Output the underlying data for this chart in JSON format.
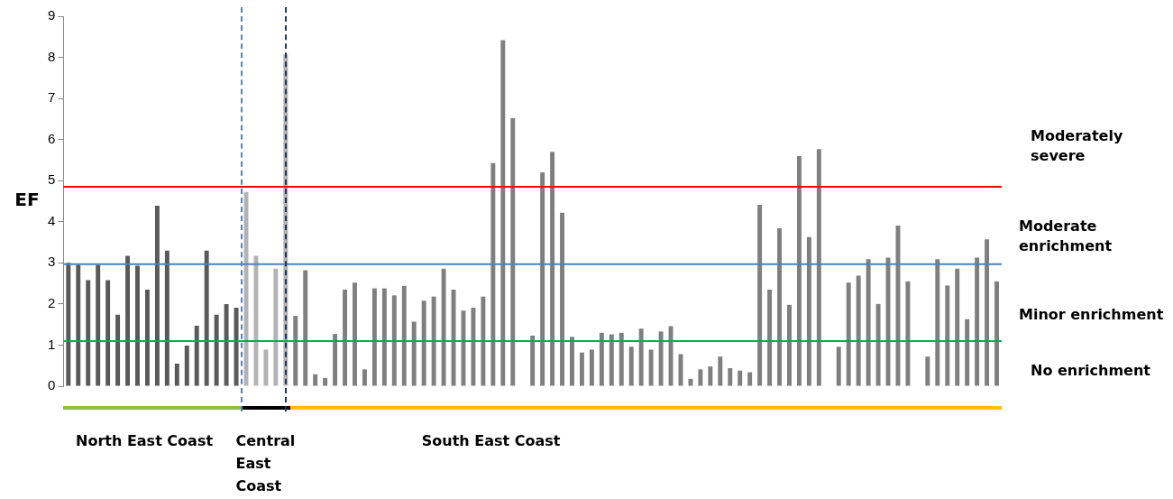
{
  "chart_data": {
    "type": "bar",
    "ylabel": "EF",
    "categories": [
      null,
      null,
      null,
      null,
      null,
      null,
      null,
      null,
      null,
      null,
      null,
      null,
      null,
      null,
      null,
      null,
      null,
      null,
      null,
      null,
      null,
      null,
      null,
      null,
      null,
      null,
      null,
      null,
      null,
      null,
      null,
      null,
      null,
      null,
      null,
      null,
      null,
      null,
      null,
      null,
      null,
      null,
      null,
      null,
      null,
      null,
      null,
      null,
      null,
      null,
      null,
      null,
      null,
      null,
      null,
      null,
      null,
      null,
      null,
      null,
      null,
      null,
      null,
      null,
      null,
      null,
      null,
      null,
      null,
      null,
      null,
      null,
      null,
      null,
      null,
      null,
      null,
      null,
      null,
      null,
      null,
      null,
      null,
      null,
      null,
      null,
      null,
      null,
      null,
      null,
      null,
      null,
      null,
      null,
      null
    ],
    "values": [
      3.0,
      2.96,
      2.58,
      2.96,
      2.58,
      1.74,
      3.17,
      2.93,
      2.35,
      4.39,
      3.3,
      0.55,
      0.99,
      1.47,
      3.3,
      1.74,
      2.0,
      1.91,
      4.72,
      3.17,
      0.89,
      2.86,
      8.07,
      1.71,
      2.82,
      0.29,
      0.2,
      1.27,
      2.35,
      2.52,
      0.41,
      2.38,
      2.38,
      2.21,
      2.44,
      1.57,
      2.08,
      2.18,
      2.86,
      2.35,
      1.84,
      1.91,
      2.18,
      5.43,
      8.42,
      6.52,
      null,
      1.23,
      5.2,
      5.7,
      4.22,
      1.2,
      0.82,
      0.89,
      1.3,
      1.26,
      1.3,
      0.96,
      1.4,
      0.89,
      1.33,
      1.46,
      0.78,
      0.18,
      0.41,
      0.48,
      0.72,
      0.44,
      0.38,
      0.34,
      4.41,
      2.35,
      3.84,
      1.98,
      5.6,
      3.63,
      5.77,
      null,
      0.96,
      2.52,
      2.69,
      3.09,
      2.0,
      3.13,
      3.91,
      2.55,
      null,
      0.72,
      3.09,
      2.45,
      2.86,
      1.63,
      3.13,
      3.57,
      2.55
    ],
    "colors": [
      "#595959",
      "#595959",
      "#595959",
      "#595959",
      "#595959",
      "#595959",
      "#595959",
      "#595959",
      "#595959",
      "#595959",
      "#595959",
      "#595959",
      "#595959",
      "#595959",
      "#595959",
      "#595959",
      "#595959",
      "#595959",
      "#b3b3b3",
      "#b3b3b3",
      "#b3b3b3",
      "#b3b3b3",
      "#b3b3b3",
      "#7f7f7f",
      "#7f7f7f",
      "#7f7f7f",
      "#7f7f7f",
      "#7f7f7f",
      "#7f7f7f",
      "#7f7f7f",
      "#7f7f7f",
      "#7f7f7f",
      "#7f7f7f",
      "#7f7f7f",
      "#7f7f7f",
      "#7f7f7f",
      "#7f7f7f",
      "#7f7f7f",
      "#7f7f7f",
      "#7f7f7f",
      "#7f7f7f",
      "#7f7f7f",
      "#7f7f7f",
      "#7f7f7f",
      "#7f7f7f",
      "#7f7f7f",
      "#7f7f7f",
      "#7f7f7f",
      "#7f7f7f",
      "#7f7f7f",
      "#7f7f7f",
      "#7f7f7f",
      "#7f7f7f",
      "#7f7f7f",
      "#7f7f7f",
      "#7f7f7f",
      "#7f7f7f",
      "#7f7f7f",
      "#7f7f7f",
      "#7f7f7f",
      "#7f7f7f",
      "#7f7f7f",
      "#7f7f7f",
      "#7f7f7f",
      "#7f7f7f",
      "#7f7f7f",
      "#7f7f7f",
      "#7f7f7f",
      "#7f7f7f",
      "#7f7f7f",
      "#7f7f7f",
      "#7f7f7f",
      "#7f7f7f",
      "#7f7f7f",
      "#7f7f7f",
      "#7f7f7f",
      "#7f7f7f",
      "#7f7f7f",
      "#7f7f7f",
      "#7f7f7f",
      "#7f7f7f",
      "#7f7f7f",
      "#7f7f7f",
      "#7f7f7f",
      "#7f7f7f",
      "#7f7f7f",
      "#7f7f7f",
      "#7f7f7f",
      "#7f7f7f",
      "#7f7f7f",
      "#7f7f7f",
      "#7f7f7f",
      "#7f7f7f",
      "#7f7f7f",
      "#7f7f7f"
    ],
    "ylim": [
      0,
      9
    ],
    "yticks": [
      0,
      1,
      2,
      3,
      4,
      5,
      6,
      7,
      8,
      9
    ],
    "tick_labels": "y",
    "grid": false,
    "legend": false,
    "ref_lines": [
      {
        "axis": "y",
        "value": 4.85,
        "color": "#ff0000"
      },
      {
        "axis": "y",
        "value": 2.97,
        "color": "#4f81bd"
      },
      {
        "axis": "y",
        "value": 1.1,
        "color": "#00b050"
      }
    ],
    "annotations": [
      "Moderately severe",
      "Moderate enrichment",
      "Minor enrichment",
      "No enrichment",
      "North East Coast",
      "Central East Coast",
      "South East Coast"
    ]
  }
}
